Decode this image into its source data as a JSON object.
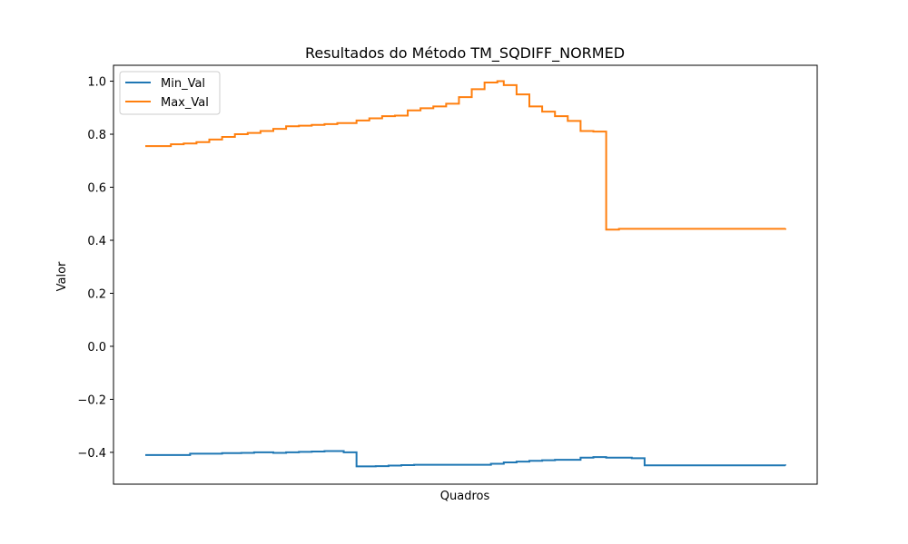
{
  "chart_data": {
    "type": "line",
    "title": "Resultados do Método TM_SQDIFF_NORMED",
    "xlabel": "Quadros",
    "ylabel": "Valor",
    "ylim": [
      -0.52,
      1.06
    ],
    "yticks": [
      -0.4,
      -0.2,
      0.0,
      0.2,
      0.4,
      0.6,
      0.8,
      1.0
    ],
    "ytick_labels": [
      "−0.4",
      "−0.2",
      "0.0",
      "0.2",
      "0.4",
      "0.6",
      "0.8",
      "1.0"
    ],
    "xticks_visible": false,
    "x_range": [
      0,
      100
    ],
    "grid": false,
    "legend_position": "upper left",
    "series": [
      {
        "name": "Min_Val",
        "color": "#1f77b4",
        "x": [
          0,
          1,
          2,
          3,
          4,
          5,
          6,
          7,
          8,
          9,
          10,
          11,
          12,
          13,
          14,
          15,
          16,
          17,
          18,
          19,
          20,
          21,
          22,
          23,
          24,
          25,
          26,
          27,
          28,
          29,
          30,
          31,
          32,
          33,
          34,
          35,
          36,
          37,
          38,
          39,
          40,
          41,
          42,
          43,
          44,
          45,
          46,
          47,
          48,
          49,
          50,
          51,
          52,
          53,
          54,
          55,
          56,
          57,
          58,
          59,
          60,
          61,
          62,
          63,
          64,
          65,
          66,
          67,
          68,
          69,
          70,
          71,
          72,
          73,
          74,
          75,
          76,
          77,
          78,
          79,
          80,
          81,
          82,
          83,
          84,
          85,
          86,
          87,
          88,
          89,
          90,
          91,
          92,
          93,
          94,
          95,
          96,
          97,
          98,
          99,
          100
        ],
        "values": [
          -0.41,
          -0.41,
          -0.41,
          -0.41,
          -0.41,
          -0.41,
          -0.41,
          -0.405,
          -0.405,
          -0.405,
          -0.405,
          -0.405,
          -0.403,
          -0.403,
          -0.403,
          -0.402,
          -0.402,
          -0.4,
          -0.4,
          -0.4,
          -0.402,
          -0.402,
          -0.4,
          -0.4,
          -0.398,
          -0.398,
          -0.397,
          -0.397,
          -0.395,
          -0.395,
          -0.395,
          -0.4,
          -0.4,
          -0.453,
          -0.453,
          -0.453,
          -0.452,
          -0.452,
          -0.45,
          -0.45,
          -0.448,
          -0.448,
          -0.447,
          -0.447,
          -0.447,
          -0.447,
          -0.447,
          -0.447,
          -0.447,
          -0.447,
          -0.447,
          -0.447,
          -0.447,
          -0.447,
          -0.443,
          -0.443,
          -0.438,
          -0.438,
          -0.435,
          -0.435,
          -0.432,
          -0.432,
          -0.43,
          -0.43,
          -0.428,
          -0.428,
          -0.428,
          -0.428,
          -0.42,
          -0.42,
          -0.418,
          -0.418,
          -0.42,
          -0.42,
          -0.42,
          -0.42,
          -0.422,
          -0.422,
          -0.449,
          -0.449,
          -0.449,
          -0.449,
          -0.449,
          -0.449,
          -0.449,
          -0.449,
          -0.449,
          -0.449,
          -0.449,
          -0.449,
          -0.449,
          -0.449,
          -0.449,
          -0.449,
          -0.449,
          -0.449,
          -0.449,
          -0.449,
          -0.449,
          -0.449,
          -0.45
        ]
      },
      {
        "name": "Max_Val",
        "color": "#ff7f0e",
        "x": [
          0,
          1,
          2,
          3,
          4,
          5,
          6,
          7,
          8,
          9,
          10,
          11,
          12,
          13,
          14,
          15,
          16,
          17,
          18,
          19,
          20,
          21,
          22,
          23,
          24,
          25,
          26,
          27,
          28,
          29,
          30,
          31,
          32,
          33,
          34,
          35,
          36,
          37,
          38,
          39,
          40,
          41,
          42,
          43,
          44,
          45,
          46,
          47,
          48,
          49,
          50,
          51,
          52,
          53,
          54,
          55,
          56,
          57,
          58,
          59,
          60,
          61,
          62,
          63,
          64,
          65,
          66,
          67,
          68,
          69,
          70,
          71,
          72,
          73,
          74,
          75,
          76,
          77,
          78,
          79,
          80,
          81,
          82,
          83,
          84,
          85,
          86,
          87,
          88,
          89,
          90,
          91,
          92,
          93,
          94,
          95,
          96,
          97,
          98,
          99,
          100
        ],
        "values": [
          0.755,
          0.755,
          0.755,
          0.755,
          0.762,
          0.762,
          0.765,
          0.765,
          0.77,
          0.77,
          0.78,
          0.78,
          0.79,
          0.79,
          0.8,
          0.8,
          0.805,
          0.805,
          0.812,
          0.812,
          0.82,
          0.82,
          0.83,
          0.83,
          0.832,
          0.832,
          0.835,
          0.835,
          0.838,
          0.838,
          0.842,
          0.842,
          0.842,
          0.852,
          0.852,
          0.86,
          0.86,
          0.868,
          0.868,
          0.87,
          0.87,
          0.89,
          0.89,
          0.898,
          0.898,
          0.905,
          0.905,
          0.915,
          0.915,
          0.94,
          0.94,
          0.97,
          0.97,
          0.995,
          0.995,
          1.0,
          0.985,
          0.985,
          0.95,
          0.95,
          0.905,
          0.905,
          0.885,
          0.885,
          0.868,
          0.868,
          0.85,
          0.85,
          0.812,
          0.812,
          0.81,
          0.81,
          0.44,
          0.44,
          0.443,
          0.443,
          0.443,
          0.443,
          0.443,
          0.443,
          0.443,
          0.443,
          0.443,
          0.443,
          0.443,
          0.443,
          0.443,
          0.443,
          0.443,
          0.443,
          0.443,
          0.443,
          0.443,
          0.443,
          0.443,
          0.443,
          0.443,
          0.443,
          0.443,
          0.443,
          0.445
        ]
      }
    ]
  }
}
